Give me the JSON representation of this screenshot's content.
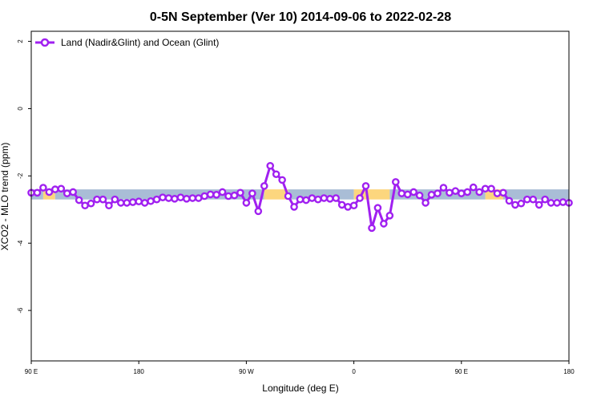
{
  "chart_data": {
    "type": "line",
    "title": "0-5N September (Ver 10)   2014-09-06 to 2022-02-28",
    "xlabel": "Longitude (deg E)",
    "ylabel": "XCO2 - MLO trend (ppm)",
    "xlim": [
      90,
      450
    ],
    "ylim": [
      -7.5,
      2.3
    ],
    "x_ticks": [
      {
        "value": 90,
        "label": "90 E"
      },
      {
        "value": 162,
        "label": "180"
      },
      {
        "value": 234,
        "label": "90 W"
      },
      {
        "value": 306,
        "label": "0"
      },
      {
        "value": 378,
        "label": "90 E"
      },
      {
        "value": 450,
        "label": "180"
      }
    ],
    "y_ticks": [
      2,
      0,
      -2,
      -4,
      -6
    ],
    "grid": false,
    "legend_position": "top-left",
    "series": [
      {
        "name": "Land (Nadir&Glint) and Ocean (Glint)",
        "color": "#a020f0",
        "x": [
          90,
          94,
          98,
          102,
          106,
          110,
          114,
          118,
          122,
          126,
          130,
          134,
          138,
          142,
          146,
          150,
          154,
          158,
          162,
          166,
          170,
          174,
          178,
          182,
          186,
          190,
          194,
          198,
          202,
          206,
          210,
          214,
          218,
          222,
          226,
          230,
          234,
          238,
          242,
          246,
          250,
          254,
          258,
          262,
          266,
          270,
          274,
          278,
          282,
          286,
          290,
          294,
          298,
          302,
          306,
          310,
          314,
          318,
          322,
          326,
          330,
          334,
          338,
          342,
          346,
          350,
          354,
          358,
          362,
          366,
          370,
          374,
          378,
          382,
          386,
          390,
          394,
          398,
          402,
          406,
          410,
          414,
          418,
          422,
          426,
          430,
          434,
          438,
          442,
          446,
          450
        ],
        "values": [
          -2.5,
          -2.5,
          -2.35,
          -2.48,
          -2.4,
          -2.38,
          -2.52,
          -2.48,
          -2.72,
          -2.88,
          -2.82,
          -2.7,
          -2.7,
          -2.88,
          -2.7,
          -2.8,
          -2.8,
          -2.78,
          -2.76,
          -2.8,
          -2.75,
          -2.7,
          -2.64,
          -2.66,
          -2.68,
          -2.64,
          -2.68,
          -2.66,
          -2.66,
          -2.6,
          -2.55,
          -2.56,
          -2.48,
          -2.6,
          -2.58,
          -2.5,
          -2.8,
          -2.52,
          -3.05,
          -2.3,
          -1.7,
          -1.95,
          -2.12,
          -2.6,
          -2.92,
          -2.7,
          -2.72,
          -2.66,
          -2.7,
          -2.66,
          -2.68,
          -2.66,
          -2.86,
          -2.92,
          -2.88,
          -2.66,
          -2.3,
          -3.55,
          -2.95,
          -3.42,
          -3.18,
          -2.18,
          -2.52,
          -2.55,
          -2.48,
          -2.58,
          -2.8,
          -2.56,
          -2.52,
          -2.35,
          -2.5,
          -2.45,
          -2.52,
          -2.48,
          -2.34,
          -2.48,
          -2.38,
          -2.38,
          -2.52,
          -2.5,
          -2.74,
          -2.86,
          -2.82,
          -2.7,
          -2.7,
          -2.86,
          -2.7,
          -2.8,
          -2.8,
          -2.78,
          -2.8
        ]
      }
    ],
    "background_band": {
      "y_range": [
        -2.7,
        -2.4
      ],
      "segments": [
        {
          "x_start": 90,
          "x_end": 98,
          "color": "#a9bdd6"
        },
        {
          "x_start": 98,
          "x_end": 106,
          "color": "#fcd67e"
        },
        {
          "x_start": 106,
          "x_end": 246,
          "color": "#a9bdd6"
        },
        {
          "x_start": 246,
          "x_end": 262,
          "color": "#fcd67e"
        },
        {
          "x_start": 262,
          "x_end": 306,
          "color": "#a9bdd6"
        },
        {
          "x_start": 306,
          "x_end": 330,
          "color": "#fcd67e"
        },
        {
          "x_start": 330,
          "x_end": 394,
          "color": "#a9bdd6"
        },
        {
          "x_start": 394,
          "x_end": 406,
          "color": "#fcd67e"
        },
        {
          "x_start": 406,
          "x_end": 450,
          "color": "#a9bdd6"
        }
      ]
    }
  }
}
